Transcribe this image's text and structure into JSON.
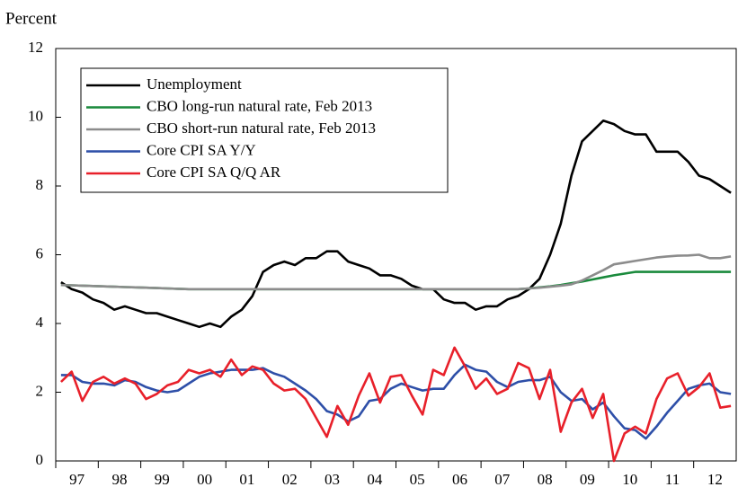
{
  "chart_data": {
    "type": "line",
    "ylabel": "Percent",
    "x": [
      1997.125,
      1997.375,
      1997.625,
      1997.875,
      1998.125,
      1998.375,
      1998.625,
      1998.875,
      1999.125,
      1999.375,
      1999.625,
      1999.875,
      2000.125,
      2000.375,
      2000.625,
      2000.875,
      2001.125,
      2001.375,
      2001.625,
      2001.875,
      2002.125,
      2002.375,
      2002.625,
      2002.875,
      2003.125,
      2003.375,
      2003.625,
      2003.875,
      2004.125,
      2004.375,
      2004.625,
      2004.875,
      2005.125,
      2005.375,
      2005.625,
      2005.875,
      2006.125,
      2006.375,
      2006.625,
      2006.875,
      2007.125,
      2007.375,
      2007.625,
      2007.875,
      2008.125,
      2008.375,
      2008.625,
      2008.875,
      2009.125,
      2009.375,
      2009.625,
      2009.875,
      2010.125,
      2010.375,
      2010.625,
      2010.875,
      2011.125,
      2011.375,
      2011.625,
      2011.875,
      2012.125,
      2012.375,
      2012.625,
      2012.875
    ],
    "series": [
      {
        "name": "Unemployment",
        "color": "#000000",
        "values": [
          5.2,
          5.0,
          4.9,
          4.7,
          4.6,
          4.4,
          4.5,
          4.4,
          4.3,
          4.3,
          4.2,
          4.1,
          4.0,
          3.9,
          4.0,
          3.9,
          4.2,
          4.4,
          4.8,
          5.5,
          5.7,
          5.8,
          5.7,
          5.9,
          5.9,
          6.1,
          6.1,
          5.8,
          5.7,
          5.6,
          5.4,
          5.4,
          5.3,
          5.1,
          5.0,
          5.0,
          4.7,
          4.6,
          4.6,
          4.4,
          4.5,
          4.5,
          4.7,
          4.8,
          5.0,
          5.3,
          6.0,
          6.9,
          8.3,
          9.3,
          9.6,
          9.9,
          9.8,
          9.6,
          9.5,
          9.5,
          9.0,
          9.0,
          9.0,
          8.7,
          8.3,
          8.2,
          8.0,
          7.8
        ]
      },
      {
        "name": "CBO long-run natural rate, Feb 2013",
        "color": "#1a8a3c",
        "values": [
          5.12,
          5.11,
          5.1,
          5.09,
          5.08,
          5.07,
          5.06,
          5.05,
          5.04,
          5.03,
          5.02,
          5.01,
          5.0,
          5.0,
          5.0,
          5.0,
          5.0,
          5.0,
          5.0,
          5.0,
          5.0,
          5.0,
          5.0,
          5.0,
          5.0,
          5.0,
          5.0,
          5.0,
          5.0,
          5.0,
          5.0,
          5.0,
          5.0,
          5.0,
          5.0,
          5.0,
          5.0,
          5.0,
          5.0,
          5.0,
          5.0,
          5.0,
          5.0,
          5.0,
          5.02,
          5.05,
          5.08,
          5.12,
          5.17,
          5.22,
          5.28,
          5.34,
          5.4,
          5.45,
          5.5,
          5.5,
          5.5,
          5.5,
          5.5,
          5.5,
          5.5,
          5.5,
          5.5,
          5.5
        ]
      },
      {
        "name": "CBO short-run natural rate, Feb 2013",
        "color": "#8c8c8c",
        "values": [
          5.12,
          5.11,
          5.1,
          5.09,
          5.08,
          5.07,
          5.06,
          5.05,
          5.04,
          5.03,
          5.02,
          5.01,
          5.0,
          5.0,
          5.0,
          5.0,
          5.0,
          5.0,
          5.0,
          5.0,
          5.0,
          5.0,
          5.0,
          5.0,
          5.0,
          5.0,
          5.0,
          5.0,
          5.0,
          5.0,
          5.0,
          5.0,
          5.0,
          5.0,
          5.0,
          5.0,
          5.0,
          5.0,
          5.0,
          5.0,
          5.0,
          5.0,
          5.0,
          5.0,
          5.02,
          5.04,
          5.07,
          5.1,
          5.14,
          5.25,
          5.4,
          5.55,
          5.72,
          5.77,
          5.82,
          5.87,
          5.92,
          5.95,
          5.97,
          5.98,
          6.0,
          5.9,
          5.9,
          5.95
        ]
      },
      {
        "name": "Core CPI SA Y/Y",
        "color": "#2e4fa8",
        "values": [
          2.5,
          2.5,
          2.3,
          2.25,
          2.25,
          2.2,
          2.35,
          2.3,
          2.15,
          2.05,
          2.0,
          2.05,
          2.25,
          2.45,
          2.55,
          2.6,
          2.65,
          2.65,
          2.65,
          2.7,
          2.55,
          2.45,
          2.25,
          2.05,
          1.8,
          1.45,
          1.35,
          1.15,
          1.3,
          1.75,
          1.8,
          2.1,
          2.25,
          2.15,
          2.05,
          2.1,
          2.1,
          2.5,
          2.8,
          2.65,
          2.6,
          2.3,
          2.15,
          2.3,
          2.35,
          2.35,
          2.45,
          2.0,
          1.75,
          1.8,
          1.5,
          1.7,
          1.3,
          0.95,
          0.9,
          0.65,
          1.0,
          1.4,
          1.75,
          2.1,
          2.2,
          2.25,
          2.0,
          1.95
        ]
      },
      {
        "name": "Core CPI SA Q/Q AR",
        "color": "#e8202a",
        "values": [
          2.3,
          2.6,
          1.75,
          2.3,
          2.45,
          2.25,
          2.4,
          2.25,
          1.8,
          1.95,
          2.2,
          2.3,
          2.65,
          2.55,
          2.65,
          2.45,
          2.95,
          2.5,
          2.75,
          2.65,
          2.25,
          2.05,
          2.1,
          1.8,
          1.25,
          0.7,
          1.6,
          1.05,
          1.9,
          2.55,
          1.7,
          2.45,
          2.5,
          1.9,
          1.35,
          2.65,
          2.5,
          3.3,
          2.75,
          2.1,
          2.4,
          1.95,
          2.1,
          2.85,
          2.7,
          1.8,
          2.65,
          0.85,
          1.7,
          2.1,
          1.25,
          1.95,
          0.0,
          0.8,
          1.0,
          0.8,
          1.8,
          2.4,
          2.55,
          1.9,
          2.15,
          2.55,
          1.55,
          1.6
        ]
      }
    ],
    "xlim": [
      1997,
      2013
    ],
    "xticks": [
      {
        "value": 1997.5,
        "label": "97"
      },
      {
        "value": 1998.5,
        "label": "98"
      },
      {
        "value": 1999.5,
        "label": "99"
      },
      {
        "value": 2000.5,
        "label": "00"
      },
      {
        "value": 2001.5,
        "label": "01"
      },
      {
        "value": 2002.5,
        "label": "02"
      },
      {
        "value": 2003.5,
        "label": "03"
      },
      {
        "value": 2004.5,
        "label": "04"
      },
      {
        "value": 2005.5,
        "label": "05"
      },
      {
        "value": 2006.5,
        "label": "06"
      },
      {
        "value": 2007.5,
        "label": "07"
      },
      {
        "value": 2008.5,
        "label": "08"
      },
      {
        "value": 2009.5,
        "label": "09"
      },
      {
        "value": 2010.5,
        "label": "10"
      },
      {
        "value": 2011.5,
        "label": "11"
      },
      {
        "value": 2012.5,
        "label": "12"
      }
    ],
    "ylim": [
      0,
      12
    ],
    "yticks": [
      0,
      2,
      4,
      6,
      8,
      10,
      12
    ],
    "grid": false,
    "legend": "upper left"
  }
}
